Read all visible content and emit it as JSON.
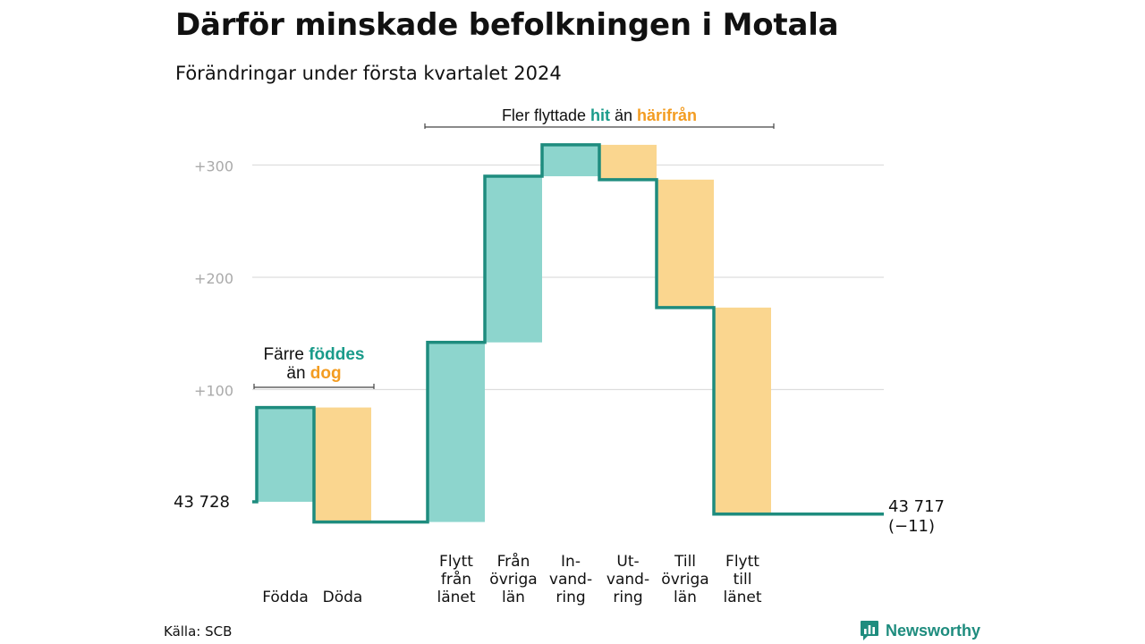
{
  "header": {
    "title": "Därför minskade befolkningen i Motala",
    "subtitle": "Förändringar under första kvartalet 2024"
  },
  "footer": {
    "source": "Källa: SCB",
    "brand": "Newsworthy"
  },
  "colors": {
    "increase_fill": "#8dd5cd",
    "decrease_fill": "#fad68f",
    "step_line": "#1e8c7e",
    "accent_teal": "#1a9b8a",
    "accent_orange": "#f39c21",
    "grid": "#dddddd",
    "tick_text": "#aaaaaa"
  },
  "chart_data": {
    "type": "waterfall",
    "baseline": 0,
    "start_label": "43  728",
    "end_label": "43 717",
    "end_change_label": "(−11)",
    "end_value": -11,
    "ylim": [
      -30,
      330
    ],
    "yticks": [
      100,
      200,
      300
    ],
    "ytick_labels": [
      "+100",
      "+200",
      "+300"
    ],
    "grid": true,
    "steps": [
      {
        "label": [
          "Födda"
        ],
        "change": 84,
        "direction": "increase"
      },
      {
        "label": [
          "Döda"
        ],
        "change": -102,
        "direction": "decrease"
      },
      {
        "label": [
          "Flytt",
          "från",
          "länet"
        ],
        "change": 160,
        "direction": "increase"
      },
      {
        "label": [
          "Från",
          "övriga",
          "län"
        ],
        "change": 148,
        "direction": "increase"
      },
      {
        "label": [
          "In-",
          "vand-",
          "ring"
        ],
        "change": 28,
        "direction": "increase"
      },
      {
        "label": [
          "Ut-",
          "vand-",
          "ring"
        ],
        "change": -31,
        "direction": "decrease"
      },
      {
        "label": [
          "Till",
          "övriga",
          "län"
        ],
        "change": -114,
        "direction": "decrease"
      },
      {
        "label": [
          "Flytt",
          "till",
          "länet"
        ],
        "change": -184,
        "direction": "decrease"
      }
    ],
    "annotations": [
      {
        "segments": [
          {
            "text": "Färre",
            "style": "plain"
          },
          {
            "text": "föddes",
            "style": "teal"
          },
          {
            "text": "än",
            "style": "plain"
          },
          {
            "text": "dog",
            "style": "orange"
          }
        ],
        "lines": [
          [
            0,
            1
          ],
          [
            2,
            3
          ]
        ],
        "covers": [
          0,
          1
        ]
      },
      {
        "segments": [
          {
            "text": "Fler flyttade",
            "style": "plain"
          },
          {
            "text": "hit",
            "style": "teal"
          },
          {
            "text": "än",
            "style": "plain"
          },
          {
            "text": "härifrån",
            "style": "orange"
          }
        ],
        "lines": [
          [
            0,
            1,
            2,
            3
          ]
        ],
        "covers": [
          2,
          7
        ]
      }
    ]
  }
}
